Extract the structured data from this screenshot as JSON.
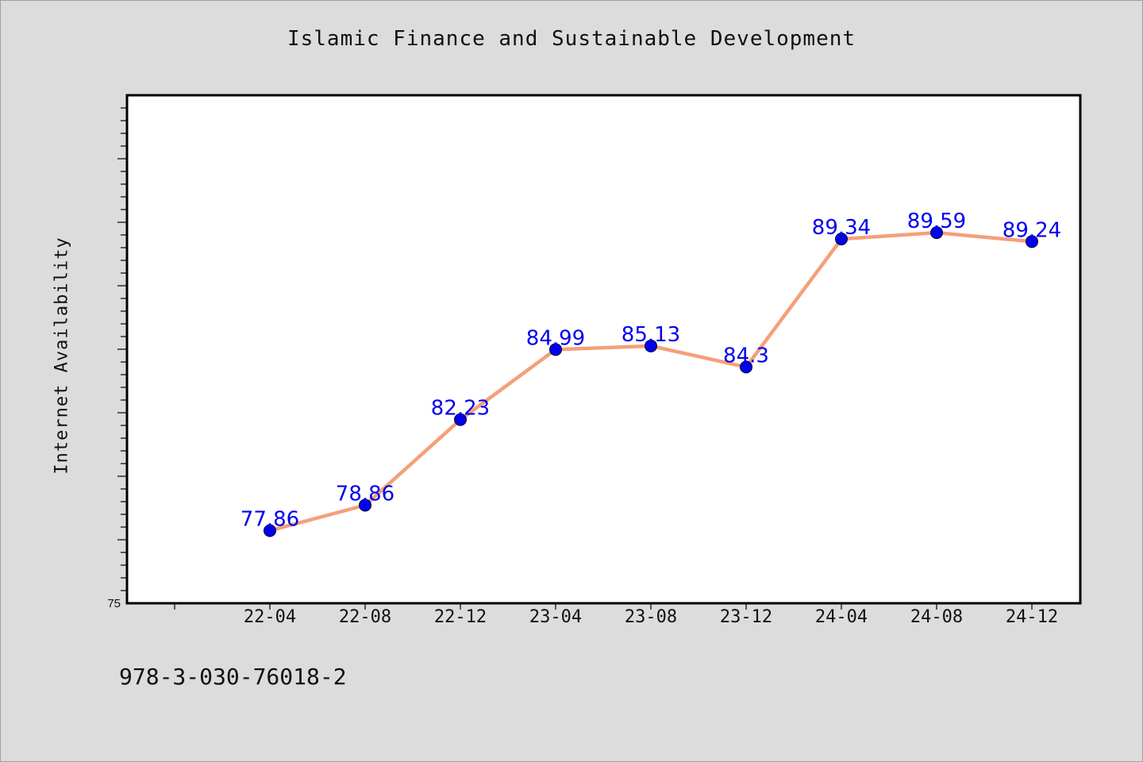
{
  "chart_data": {
    "type": "line",
    "title": "Islamic Finance and Sustainable Development",
    "xlabel": "",
    "ylabel": "Internet Availability",
    "categories": [
      "22-04",
      "22-08",
      "22-12",
      "23-04",
      "23-08",
      "23-12",
      "24-04",
      "24-08",
      "24-12"
    ],
    "series": [
      {
        "values": [
          77.86,
          78.86,
          82.23,
          84.99,
          85.13,
          84.3,
          89.34,
          89.59,
          89.24
        ],
        "labels": [
          "77.86",
          "78.86",
          "82.23",
          "84.99",
          "85.13",
          "84.3",
          "89.34",
          "89.59",
          "89.24"
        ],
        "line_color": "#f4a07a",
        "marker_color": "#0000ee"
      }
    ],
    "ylim": [
      75,
      95
    ],
    "yticks_labeled": [
      "75"
    ],
    "grid": false,
    "legend": "none"
  },
  "footer_text": "978-3-030-76018-2",
  "colors": {
    "background": "#dcdcdc",
    "plot_background": "#ffffff",
    "line": "#f4a07a",
    "marker": "#0000ee",
    "data_label": "#0000ee"
  }
}
